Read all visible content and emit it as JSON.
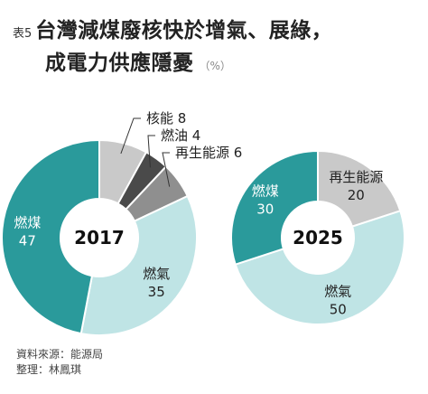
{
  "header": {
    "tag": "表5",
    "title_line1": "台灣減煤廢核快於增氣、展綠，",
    "title_line2": "成電力供應隱憂",
    "unit": "（%）"
  },
  "colors": {
    "coal": "#2a9a9b",
    "gas": "#bfe4e5",
    "nuclear": "#c9c9c9",
    "oil": "#4a4a4a",
    "renewable_dark": "#8f8f8f",
    "renewable_light": "#c9c9c9"
  },
  "chart_data": [
    {
      "type": "pie",
      "title": "2017",
      "slices": [
        {
          "label": "燃煤",
          "value": 47,
          "color": "#2a9a9b"
        },
        {
          "label": "燃氣",
          "value": 35,
          "color": "#bfe4e5"
        },
        {
          "label": "再生能源",
          "value": 6,
          "color": "#8f8f8f"
        },
        {
          "label": "燃油",
          "value": 4,
          "color": "#4a4a4a"
        },
        {
          "label": "核能",
          "value": 8,
          "color": "#c9c9c9"
        }
      ]
    },
    {
      "type": "pie",
      "title": "2025",
      "slices": [
        {
          "label": "燃煤",
          "value": 30,
          "color": "#2a9a9b"
        },
        {
          "label": "燃氣",
          "value": 50,
          "color": "#bfe4e5"
        },
        {
          "label": "再生能源",
          "value": 20,
          "color": "#c9c9c9"
        }
      ]
    }
  ],
  "source": {
    "line1": "資料來源：能源局",
    "line2": "整理：林鳳琪"
  }
}
